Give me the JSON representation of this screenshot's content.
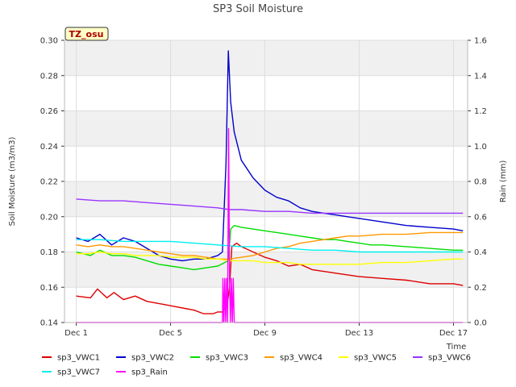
{
  "chart_data": {
    "type": "line",
    "title": "SP3 Soil Moisture",
    "site_tag": "TZ_osu",
    "xlabel": "Time",
    "ylabel": "Soil Moisture (m3/m3)",
    "y2label": "Rain (mm)",
    "xlim": [
      0.5,
      17.6
    ],
    "ylim": [
      0.14,
      0.3
    ],
    "y2lim": [
      0.0,
      1.6
    ],
    "x_ticks": [
      {
        "value": 1,
        "label": "Dec 1"
      },
      {
        "value": 5,
        "label": "Dec 5"
      },
      {
        "value": 9,
        "label": "Dec 9"
      },
      {
        "value": 13,
        "label": "Dec 13"
      },
      {
        "value": 17,
        "label": "Dec 17"
      }
    ],
    "y_ticks": [
      "0.14",
      "0.16",
      "0.18",
      "0.20",
      "0.22",
      "0.24",
      "0.26",
      "0.28",
      "0.30"
    ],
    "y2_ticks": [
      "0.0",
      "0.2",
      "0.4",
      "0.6",
      "0.8",
      "1.0",
      "1.2",
      "1.4",
      "1.6"
    ],
    "grid": true,
    "background_bands": true,
    "legend_position": "bottom",
    "series": [
      {
        "name": "sp3_VWC1",
        "color": "#dd0000",
        "axis": "left",
        "x": [
          1.0,
          1.6,
          1.9,
          2.3,
          2.6,
          3.0,
          3.5,
          4.0,
          4.4,
          4.8,
          5.2,
          5.6,
          6.0,
          6.4,
          6.8,
          7.0,
          7.2,
          7.4,
          7.5,
          7.6,
          7.8,
          8.0,
          8.5,
          9.0,
          9.5,
          10.0,
          10.5,
          11.0,
          12.0,
          13.0,
          14.0,
          15.0,
          16.0,
          17.0,
          17.4
        ],
        "y": [
          0.155,
          0.154,
          0.159,
          0.154,
          0.157,
          0.153,
          0.155,
          0.152,
          0.151,
          0.15,
          0.149,
          0.148,
          0.147,
          0.145,
          0.145,
          0.146,
          0.146,
          0.15,
          0.16,
          0.183,
          0.185,
          0.183,
          0.18,
          0.177,
          0.175,
          0.172,
          0.173,
          0.17,
          0.168,
          0.166,
          0.165,
          0.164,
          0.162,
          0.162,
          0.161
        ]
      },
      {
        "name": "sp3_VWC2",
        "color": "#0000cc",
        "axis": "left",
        "x": [
          1.0,
          1.5,
          2.0,
          2.5,
          3.0,
          3.5,
          4.0,
          4.5,
          5.0,
          5.5,
          6.0,
          6.5,
          7.0,
          7.2,
          7.35,
          7.45,
          7.55,
          7.7,
          8.0,
          8.5,
          9.0,
          9.5,
          10.0,
          10.5,
          11.0,
          11.5,
          12.0,
          12.5,
          13.0,
          14.0,
          15.0,
          16.0,
          17.0,
          17.4
        ],
        "y": [
          0.188,
          0.186,
          0.19,
          0.184,
          0.188,
          0.186,
          0.182,
          0.178,
          0.176,
          0.175,
          0.176,
          0.176,
          0.178,
          0.18,
          0.23,
          0.294,
          0.265,
          0.248,
          0.232,
          0.222,
          0.215,
          0.211,
          0.209,
          0.205,
          0.203,
          0.202,
          0.201,
          0.2,
          0.199,
          0.197,
          0.195,
          0.194,
          0.193,
          0.192
        ]
      },
      {
        "name": "sp3_VWC3",
        "color": "#00dd00",
        "axis": "left",
        "x": [
          1.0,
          1.6,
          2.0,
          2.5,
          3.0,
          3.5,
          4.0,
          4.5,
          5.0,
          5.5,
          6.0,
          6.5,
          7.0,
          7.3,
          7.45,
          7.55,
          7.7,
          8.0,
          8.5,
          9.0,
          9.5,
          10.0,
          10.5,
          11.0,
          11.5,
          12.0,
          12.5,
          13.0,
          13.5,
          14.0,
          15.0,
          16.0,
          17.0,
          17.4
        ],
        "y": [
          0.18,
          0.178,
          0.181,
          0.178,
          0.178,
          0.177,
          0.175,
          0.173,
          0.172,
          0.171,
          0.17,
          0.171,
          0.172,
          0.174,
          0.175,
          0.193,
          0.195,
          0.194,
          0.193,
          0.192,
          0.191,
          0.19,
          0.189,
          0.188,
          0.187,
          0.187,
          0.186,
          0.185,
          0.184,
          0.184,
          0.183,
          0.182,
          0.181,
          0.181
        ]
      },
      {
        "name": "sp3_VWC4",
        "color": "#ff9900",
        "axis": "left",
        "x": [
          1.0,
          1.5,
          2.0,
          2.5,
          3.0,
          3.5,
          4.0,
          4.5,
          5.0,
          5.5,
          6.0,
          6.5,
          7.0,
          7.5,
          8.0,
          8.5,
          9.0,
          9.5,
          10.0,
          10.5,
          11.0,
          11.5,
          12.0,
          12.5,
          13.0,
          14.0,
          15.0,
          16.0,
          17.0,
          17.4
        ],
        "y": [
          0.184,
          0.183,
          0.184,
          0.183,
          0.183,
          0.182,
          0.181,
          0.18,
          0.179,
          0.178,
          0.178,
          0.177,
          0.176,
          0.176,
          0.177,
          0.178,
          0.18,
          0.182,
          0.183,
          0.185,
          0.186,
          0.187,
          0.188,
          0.189,
          0.189,
          0.19,
          0.19,
          0.191,
          0.191,
          0.191
        ]
      },
      {
        "name": "sp3_VWC5",
        "color": "#ffff00",
        "axis": "left",
        "x": [
          1.0,
          1.5,
          2.0,
          2.5,
          3.0,
          3.5,
          4.0,
          4.5,
          5.0,
          5.5,
          6.0,
          6.5,
          7.0,
          7.5,
          8.0,
          8.5,
          9.0,
          9.5,
          10.0,
          10.5,
          11.0,
          11.5,
          12.0,
          12.5,
          13.0,
          14.0,
          15.0,
          16.0,
          17.0,
          17.4
        ],
        "y": [
          0.179,
          0.179,
          0.18,
          0.179,
          0.179,
          0.178,
          0.178,
          0.178,
          0.177,
          0.177,
          0.177,
          0.176,
          0.176,
          0.175,
          0.175,
          0.175,
          0.174,
          0.174,
          0.174,
          0.173,
          0.173,
          0.173,
          0.173,
          0.173,
          0.173,
          0.174,
          0.174,
          0.175,
          0.176,
          0.176
        ]
      },
      {
        "name": "sp3_VWC6",
        "color": "#9933ff",
        "axis": "left",
        "x": [
          1.0,
          2.0,
          3.0,
          4.0,
          5.0,
          6.0,
          7.0,
          7.5,
          8.0,
          9.0,
          10.0,
          11.0,
          12.0,
          13.0,
          14.0,
          15.0,
          16.0,
          17.0,
          17.4
        ],
        "y": [
          0.21,
          0.209,
          0.209,
          0.208,
          0.207,
          0.206,
          0.205,
          0.204,
          0.204,
          0.203,
          0.203,
          0.202,
          0.202,
          0.202,
          0.202,
          0.202,
          0.202,
          0.202,
          0.202
        ]
      },
      {
        "name": "sp3_VWC7",
        "color": "#00eeee",
        "axis": "left",
        "x": [
          1.0,
          2.0,
          3.0,
          4.0,
          5.0,
          6.0,
          7.0,
          8.0,
          9.0,
          10.0,
          11.0,
          12.0,
          13.0,
          14.0,
          15.0,
          16.0,
          17.0,
          17.4
        ],
        "y": [
          0.187,
          0.187,
          0.186,
          0.186,
          0.186,
          0.185,
          0.184,
          0.183,
          0.183,
          0.182,
          0.181,
          0.181,
          0.18,
          0.18,
          0.18,
          0.18,
          0.18,
          0.18
        ]
      },
      {
        "name": "sp3_Rain",
        "color": "#ff00ff",
        "axis": "right",
        "x": [
          1.0,
          7.2,
          7.22,
          7.26,
          7.3,
          7.34,
          7.38,
          7.42,
          7.46,
          7.5,
          7.54,
          7.58,
          7.62,
          7.66,
          7.7,
          7.74,
          7.78,
          17.4
        ],
        "y": [
          0.0,
          0.0,
          0.25,
          0.0,
          0.25,
          0.0,
          0.25,
          0.0,
          1.1,
          0.25,
          0.0,
          0.25,
          0.0,
          0.25,
          0.0,
          0.0,
          0.0,
          0.0
        ]
      }
    ]
  }
}
